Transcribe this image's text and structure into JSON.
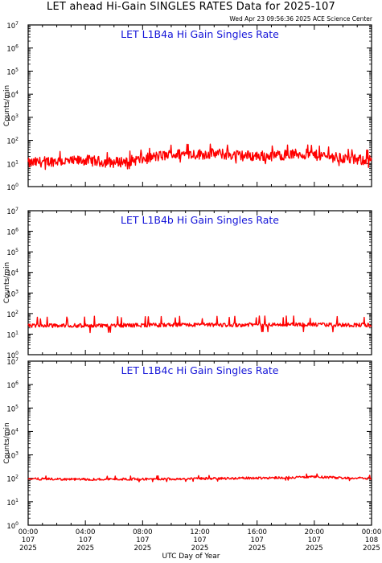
{
  "header": {
    "title": "LET ahead Hi-Gain SINGLES RATES Data for 2025-107",
    "timestamp": "Wed Apr 23 09:56:36 2025 ACE Science Center"
  },
  "chart_data": [
    {
      "type": "line",
      "title": "LET L1B4a Hi Gain Singles Rate",
      "ylabel": "Counts/min",
      "yscale": "log",
      "ylim": [
        1,
        10000000
      ],
      "xlim": [
        0,
        24
      ],
      "color": "#ff0000",
      "x_hours": [
        0,
        1,
        2,
        3,
        4,
        5,
        6,
        7,
        8,
        9,
        10,
        11,
        12,
        13,
        14,
        15,
        16,
        17,
        18,
        19,
        20,
        21,
        22,
        23,
        24
      ],
      "values": [
        10,
        12,
        13,
        12,
        14,
        12,
        11,
        13,
        15,
        20,
        24,
        26,
        25,
        27,
        24,
        22,
        21,
        22,
        24,
        26,
        23,
        20,
        17,
        14,
        15
      ],
      "noise_factor": 1.7
    },
    {
      "type": "line",
      "title": "LET L1B4b Hi Gain Singles Rate",
      "ylabel": "Counts/min",
      "yscale": "log",
      "ylim": [
        1,
        10000000
      ],
      "xlim": [
        0,
        24
      ],
      "color": "#ff0000",
      "x_hours": [
        0,
        2,
        4,
        6,
        8,
        10,
        12,
        14,
        16,
        18,
        20,
        22,
        24
      ],
      "values": [
        25,
        26,
        26,
        27,
        27,
        28,
        28,
        28,
        29,
        29,
        29,
        28,
        28
      ],
      "noise_factor": 1.25,
      "spike_value": 60
    },
    {
      "type": "line",
      "title": "LET L1B4c Hi Gain Singles Rate",
      "ylabel": "Counts/min",
      "yscale": "log",
      "ylim": [
        1,
        10000000
      ],
      "xlim": [
        0,
        24
      ],
      "color": "#ff0000",
      "x_hours": [
        0,
        2,
        4,
        6,
        8,
        10,
        12,
        14,
        16,
        18,
        20,
        22,
        24
      ],
      "values": [
        95,
        92,
        90,
        92,
        93,
        95,
        97,
        100,
        103,
        108,
        115,
        105,
        100
      ],
      "noise_factor": 1.12
    }
  ],
  "x_axis": {
    "label": "UTC Day of Year",
    "ticks": [
      {
        "hours": 0,
        "time": "00:00",
        "day": "107",
        "year": "2025"
      },
      {
        "hours": 4,
        "time": "04:00",
        "day": "107",
        "year": "2025"
      },
      {
        "hours": 8,
        "time": "08:00",
        "day": "107",
        "year": "2025"
      },
      {
        "hours": 12,
        "time": "12:00",
        "day": "107",
        "year": "2025"
      },
      {
        "hours": 16,
        "time": "16:00",
        "day": "107",
        "year": "2025"
      },
      {
        "hours": 20,
        "time": "20:00",
        "day": "107",
        "year": "2025"
      },
      {
        "hours": 24,
        "time": "00:00",
        "day": "108",
        "year": "2025"
      }
    ]
  },
  "y_ticks": [
    {
      "base": "10",
      "exp": "0"
    },
    {
      "base": "10",
      "exp": "1"
    },
    {
      "base": "10",
      "exp": "2"
    },
    {
      "base": "10",
      "exp": "3"
    },
    {
      "base": "10",
      "exp": "4"
    },
    {
      "base": "10",
      "exp": "5"
    },
    {
      "base": "10",
      "exp": "6"
    },
    {
      "base": "10",
      "exp": "7"
    }
  ]
}
